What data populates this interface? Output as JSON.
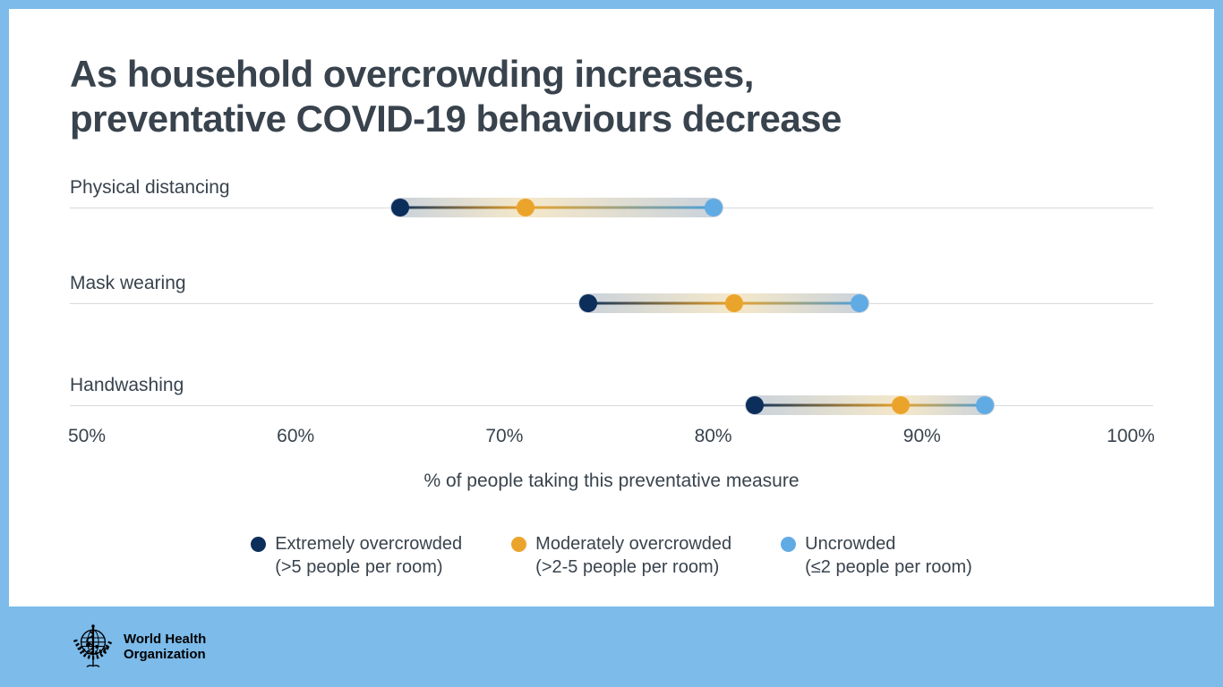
{
  "title": {
    "lines": [
      "As household overcrowding increases,",
      "preventative COVID-19 behaviours decrease"
    ]
  },
  "chart_data": {
    "type": "dumbbell-dot-plot",
    "title": "As household overcrowding increases, preventative COVID-19 behaviours decrease",
    "categories": [
      "Physical distancing",
      "Mask wearing",
      "Handwashing"
    ],
    "series": [
      {
        "name": "Extremely overcrowded",
        "sublabel": "(>5 people per room)",
        "color": "#0B2E5B",
        "values": [
          65,
          74,
          82
        ]
      },
      {
        "name": "Moderately overcrowded",
        "sublabel": "(>2-5 people per room)",
        "color": "#EBA42B",
        "values": [
          71,
          81,
          89
        ]
      },
      {
        "name": "Uncrowded",
        "sublabel": "(≤2 people per room)",
        "color": "#61ABE4",
        "values": [
          80,
          87,
          93
        ]
      }
    ],
    "x_axis": {
      "min": 50,
      "max": 100,
      "ticks": [
        "50%",
        "60%",
        "70%",
        "80%",
        "90%",
        "100%"
      ],
      "label": "% of people taking this preventative measure"
    },
    "grid": "horizontal-category-lines",
    "legend_position": "bottom"
  },
  "footer": {
    "org_line1": "World Health",
    "org_line2": "Organization"
  },
  "colors": {
    "frame_blue": "#7CBBEA",
    "card_white": "#ffffff",
    "text_dark": "#39434D",
    "gridline_gray": "#D9D9D9",
    "band_gray_blue": "#C8D1DC",
    "band_cream": "#F5E8C9",
    "dot_navy": "#0B2E5B",
    "dot_orange": "#EBA42B",
    "dot_light_blue": "#61ABE4",
    "logo_black": "#000000"
  }
}
